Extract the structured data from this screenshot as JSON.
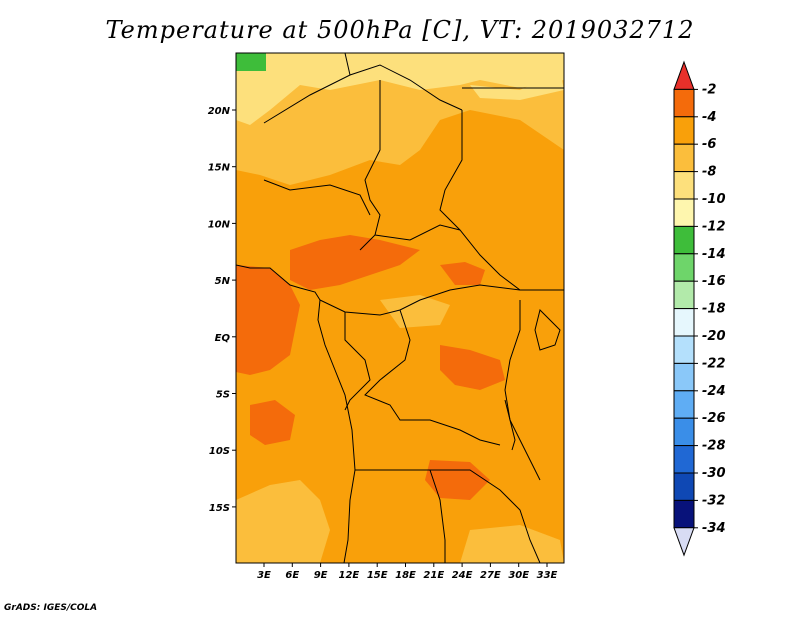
{
  "title": "Temperature at 500hPa [C], VT: 2019032712",
  "credit": "GrADS: IGES/COLA",
  "map": {
    "variable": "Temperature at 500hPa",
    "units": "C",
    "valid_time": "2019032712",
    "lon_ticks": [
      "3E",
      "6E",
      "9E",
      "12E",
      "15E",
      "18E",
      "21E",
      "24E",
      "27E",
      "30E",
      "33E"
    ],
    "lat_ticks": [
      "20N",
      "15N",
      "10N",
      "5N",
      "EQ",
      "5S",
      "10S",
      "15S"
    ]
  },
  "colorbar": {
    "labels": [
      "-2",
      "-4",
      "-6",
      "-8",
      "-10",
      "-12",
      "-14",
      "-16",
      "-18",
      "-20",
      "-22",
      "-24",
      "-26",
      "-28",
      "-30",
      "-32",
      "-34"
    ],
    "colors": [
      "#e8302a",
      "#f46b0b",
      "#f9a00a",
      "#fbbe3c",
      "#fde07c",
      "#fef6ae",
      "#3ebd3a",
      "#6ed56a",
      "#b2eaaa",
      "#e6f7fd",
      "#b4e0fc",
      "#8ac8f9",
      "#5fadf4",
      "#3a8ee8",
      "#2068d4",
      "#0f48b4",
      "#08127a",
      "#d8dcf4"
    ]
  },
  "colors": {
    "warm_fill": "#f9a00a",
    "hot_fill": "#f46b0b",
    "mild_fill": "#fbbe3c",
    "pale_fill": "#fde07c",
    "cool_fill": "#3ebd3a"
  }
}
